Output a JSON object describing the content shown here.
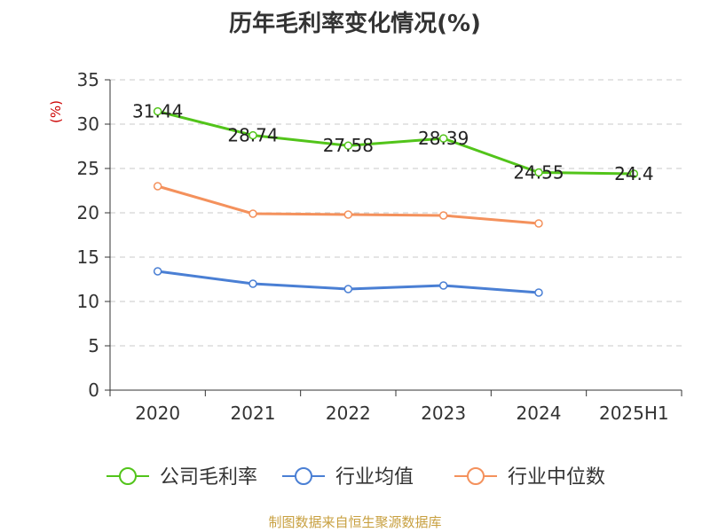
{
  "title": "历年毛利率变化情况(%)",
  "footer": "制图数据来自恒生聚源数据库",
  "chart_data": {
    "type": "line",
    "title": "历年毛利率变化情况(%)",
    "ylabel": "(%)",
    "categories": [
      "2020",
      "2021",
      "2022",
      "2023",
      "2024",
      "2025H1"
    ],
    "ylim": [
      0,
      35
    ],
    "yticks": [
      0,
      5,
      10,
      15,
      20,
      25,
      30,
      35
    ],
    "grid": true,
    "legend_position": "bottom",
    "series": [
      {
        "name": "公司毛利率",
        "color": "#52c41a",
        "values": [
          31.44,
          28.74,
          27.58,
          28.39,
          24.55,
          24.4
        ],
        "labels": [
          "31.44",
          "28.74",
          "27.58",
          "28.39",
          "24.55",
          "24.4"
        ],
        "show_labels": true
      },
      {
        "name": "行业均值",
        "color": "#4a7fd4",
        "values": [
          13.4,
          12.0,
          11.4,
          11.8,
          11.0,
          null
        ],
        "show_labels": false
      },
      {
        "name": "行业中位数",
        "color": "#f4915c",
        "values": [
          23.0,
          19.9,
          19.8,
          19.7,
          18.8,
          null
        ],
        "show_labels": false
      }
    ]
  }
}
